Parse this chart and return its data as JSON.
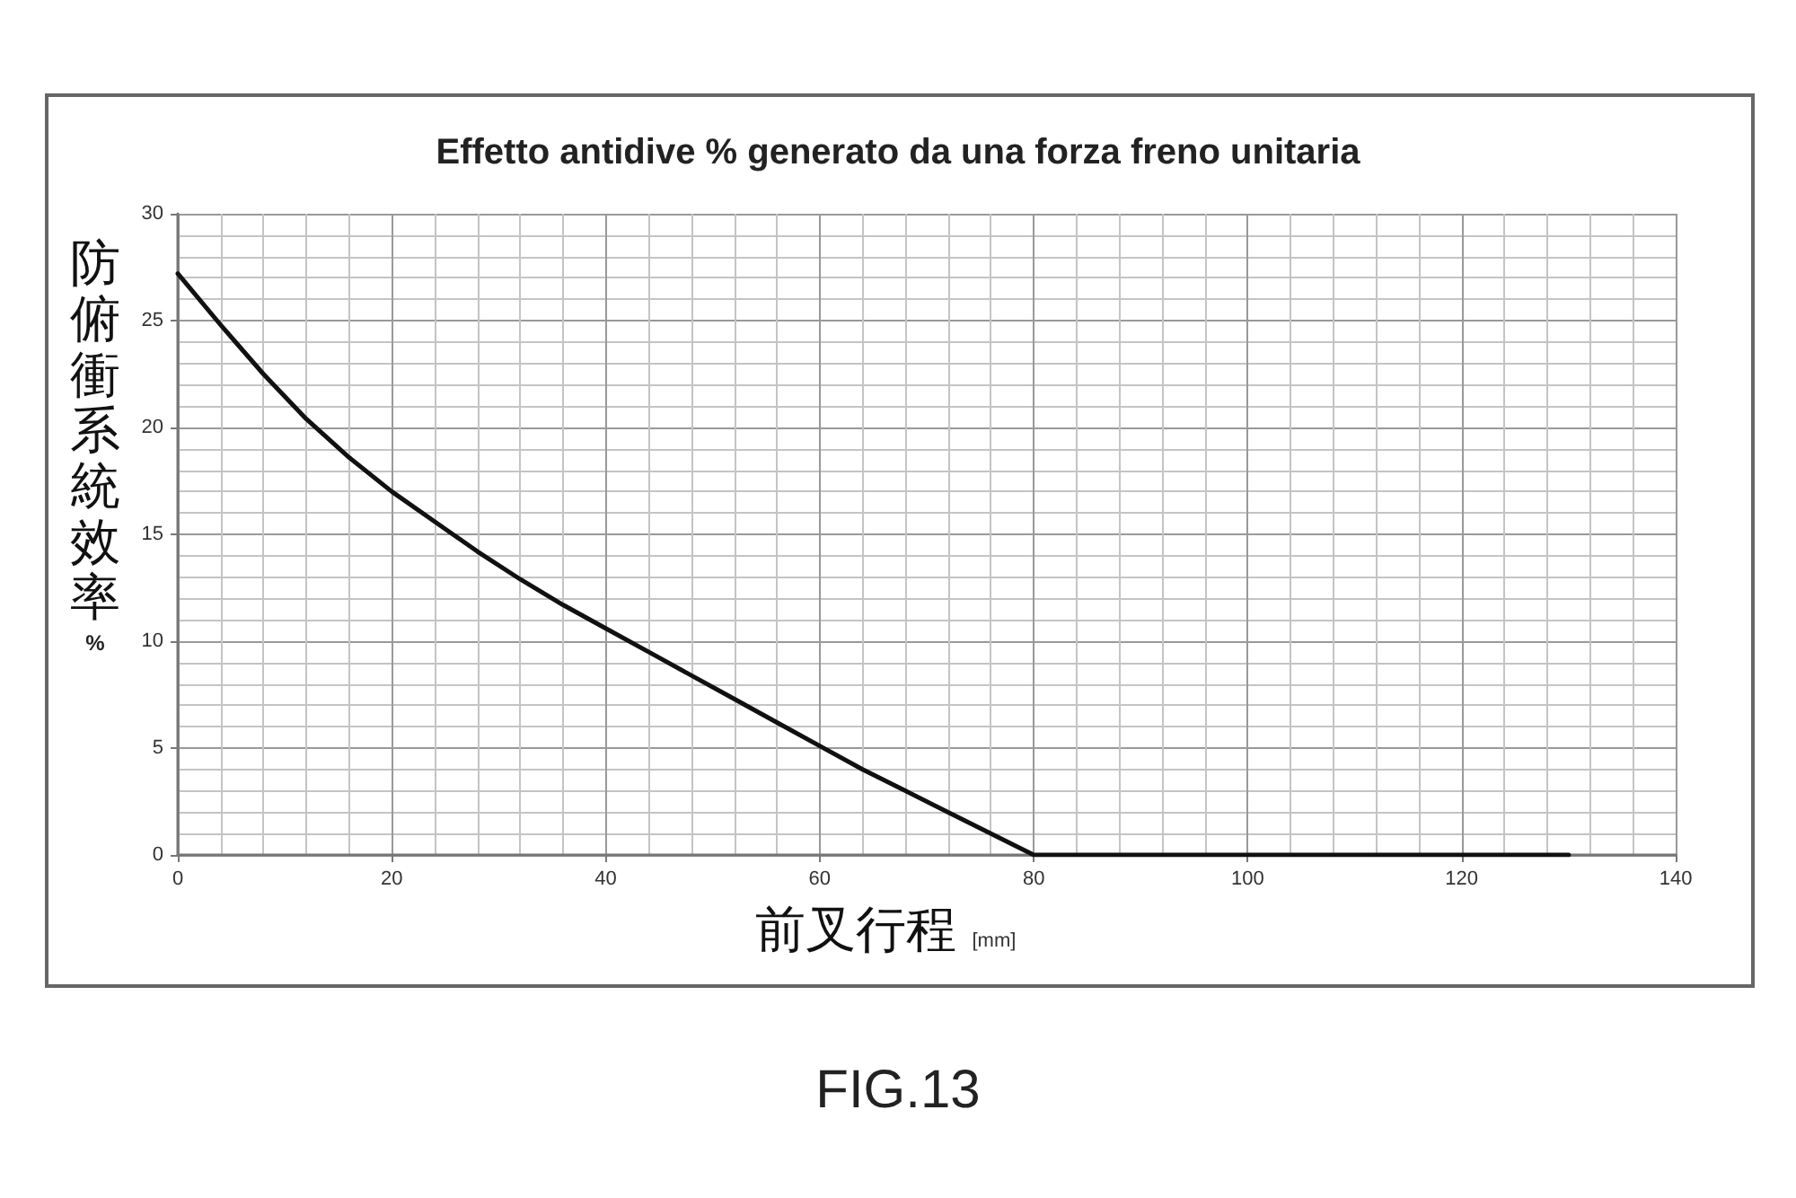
{
  "chart_data": {
    "type": "line",
    "title": "Effetto antidive % generato da una forza freno unitaria",
    "xlabel": "前叉行程 [mm]",
    "ylabel": "防俯衝系統效率 %",
    "annotations": [
      "FIG.13"
    ],
    "x": [
      0,
      4,
      8,
      12,
      16,
      20,
      24,
      28,
      32,
      36,
      40,
      44,
      48,
      52,
      56,
      60,
      64,
      68,
      72,
      76,
      80,
      130
    ],
    "series": [
      {
        "color": "#111111",
        "values": [
          27.2,
          24.8,
          22.5,
          20.4,
          18.6,
          17.0,
          15.6,
          14.2,
          12.9,
          11.7,
          10.6,
          9.5,
          8.4,
          7.3,
          6.2,
          5.1,
          4.0,
          3.0,
          2.0,
          1.0,
          0,
          0
        ]
      }
    ],
    "xlim": [
      0,
      140
    ],
    "xticks": [
      0,
      20,
      40,
      60,
      80,
      100,
      120,
      140
    ],
    "ylim": [
      0,
      30
    ],
    "yticks": [
      0,
      5,
      10,
      15,
      20,
      25,
      30
    ],
    "grid": true,
    "marker": "none",
    "line_style": "solid"
  }
}
